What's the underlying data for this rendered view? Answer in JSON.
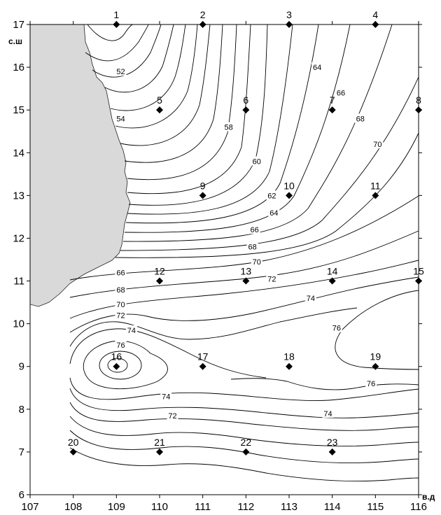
{
  "axes": {
    "x_unit_label": "в.д",
    "y_unit_label": "с.ш",
    "x_ticks": [
      "107",
      "108",
      "109",
      "110",
      "111",
      "112",
      "113",
      "114",
      "115",
      "116"
    ],
    "y_ticks": [
      "6",
      "7",
      "8",
      "9",
      "10",
      "11",
      "12",
      "13",
      "14",
      "15",
      "16",
      "17"
    ]
  },
  "stations": [
    {
      "id": "1",
      "lon": 109,
      "lat": 17
    },
    {
      "id": "2",
      "lon": 111,
      "lat": 17
    },
    {
      "id": "3",
      "lon": 113,
      "lat": 17
    },
    {
      "id": "4",
      "lon": 115,
      "lat": 17
    },
    {
      "id": "5",
      "lon": 110,
      "lat": 15
    },
    {
      "id": "6",
      "lon": 112,
      "lat": 15
    },
    {
      "id": "7",
      "lon": 114,
      "lat": 15
    },
    {
      "id": "8",
      "lon": 116,
      "lat": 15
    },
    {
      "id": "9",
      "lon": 111,
      "lat": 13
    },
    {
      "id": "10",
      "lon": 113,
      "lat": 13
    },
    {
      "id": "11",
      "lon": 115,
      "lat": 13
    },
    {
      "id": "12",
      "lon": 110,
      "lat": 11
    },
    {
      "id": "13",
      "lon": 112,
      "lat": 11
    },
    {
      "id": "14",
      "lon": 114,
      "lat": 11
    },
    {
      "id": "15",
      "lon": 116,
      "lat": 11
    },
    {
      "id": "16",
      "lon": 109,
      "lat": 9
    },
    {
      "id": "17",
      "lon": 111,
      "lat": 9
    },
    {
      "id": "18",
      "lon": 113,
      "lat": 9
    },
    {
      "id": "19",
      "lon": 115,
      "lat": 9
    },
    {
      "id": "20",
      "lon": 108,
      "lat": 7
    },
    {
      "id": "21",
      "lon": 110,
      "lat": 7
    },
    {
      "id": "22",
      "lon": 112,
      "lat": 7
    },
    {
      "id": "23",
      "lon": 114,
      "lat": 7
    }
  ],
  "contour_labels": [
    {
      "text": "52",
      "lon": 109.1,
      "lat": 15.9
    },
    {
      "text": "54",
      "lon": 109.1,
      "lat": 14.8
    },
    {
      "text": "58",
      "lon": 111.6,
      "lat": 14.6
    },
    {
      "text": "60",
      "lon": 112.25,
      "lat": 13.8
    },
    {
      "text": "62",
      "lon": 112.6,
      "lat": 13.0
    },
    {
      "text": "64",
      "lon": 113.65,
      "lat": 16.0
    },
    {
      "text": "64",
      "lon": 112.65,
      "lat": 12.6
    },
    {
      "text": "66",
      "lon": 114.2,
      "lat": 15.4
    },
    {
      "text": "66",
      "lon": 112.2,
      "lat": 12.2
    },
    {
      "text": "66",
      "lon": 109.1,
      "lat": 11.2
    },
    {
      "text": "68",
      "lon": 114.65,
      "lat": 14.8
    },
    {
      "text": "68",
      "lon": 112.15,
      "lat": 11.8
    },
    {
      "text": "68",
      "lon": 109.1,
      "lat": 10.8
    },
    {
      "text": "70",
      "lon": 115.05,
      "lat": 14.2
    },
    {
      "text": "70",
      "lon": 112.25,
      "lat": 11.45
    },
    {
      "text": "70",
      "lon": 109.1,
      "lat": 10.45
    },
    {
      "text": "72",
      "lon": 112.6,
      "lat": 11.05
    },
    {
      "text": "72",
      "lon": 109.1,
      "lat": 10.2
    },
    {
      "text": "72",
      "lon": 110.3,
      "lat": 7.85
    },
    {
      "text": "74",
      "lon": 113.5,
      "lat": 10.6
    },
    {
      "text": "74",
      "lon": 109.35,
      "lat": 9.85
    },
    {
      "text": "74",
      "lon": 110.15,
      "lat": 8.3
    },
    {
      "text": "74",
      "lon": 113.9,
      "lat": 7.9
    },
    {
      "text": "76",
      "lon": 109.1,
      "lat": 9.5
    },
    {
      "text": "76",
      "lon": 114.1,
      "lat": 9.9
    },
    {
      "text": "76",
      "lon": 114.9,
      "lat": 8.6
    }
  ],
  "contour_levels": [
    52,
    54,
    56,
    58,
    60,
    62,
    64,
    66,
    68,
    70,
    72,
    74,
    76
  ],
  "land_color": "#d9d9d9",
  "line_color": "#000000"
}
